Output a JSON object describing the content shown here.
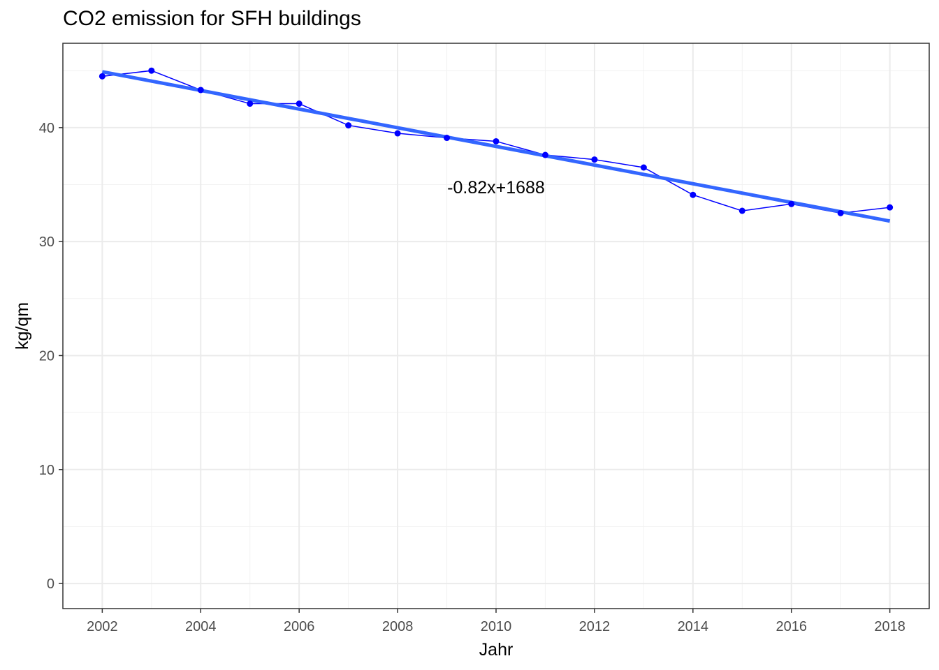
{
  "chart_data": {
    "type": "line",
    "title": "CO2 emission for SFH buildings",
    "xlabel": "Jahr",
    "ylabel": "kg/qm",
    "xlim": [
      2001.2,
      2018.8
    ],
    "ylim": [
      -2.2,
      47.4
    ],
    "x_ticks": [
      2002,
      2004,
      2006,
      2008,
      2010,
      2012,
      2014,
      2016,
      2018
    ],
    "y_ticks": [
      0,
      10,
      20,
      30,
      40
    ],
    "grid": true,
    "series": [
      {
        "kind": "observed",
        "x": [
          2002,
          2003,
          2004,
          2005,
          2006,
          2007,
          2008,
          2009,
          2010,
          2011,
          2012,
          2013,
          2014,
          2015,
          2016,
          2017,
          2018
        ],
        "y": [
          44.5,
          45.0,
          43.3,
          42.1,
          42.1,
          40.2,
          39.5,
          39.1,
          38.8,
          37.6,
          37.2,
          36.5,
          34.1,
          32.7,
          33.3,
          32.5,
          33.0
        ],
        "color": "#0000ff"
      },
      {
        "kind": "trend",
        "x": [
          2002,
          2018
        ],
        "y": [
          44.9,
          31.8
        ],
        "color": "#3366ff"
      }
    ],
    "annotations": [
      {
        "text": "-0.82x+1688",
        "x": 2010,
        "y": 34.8
      }
    ]
  }
}
